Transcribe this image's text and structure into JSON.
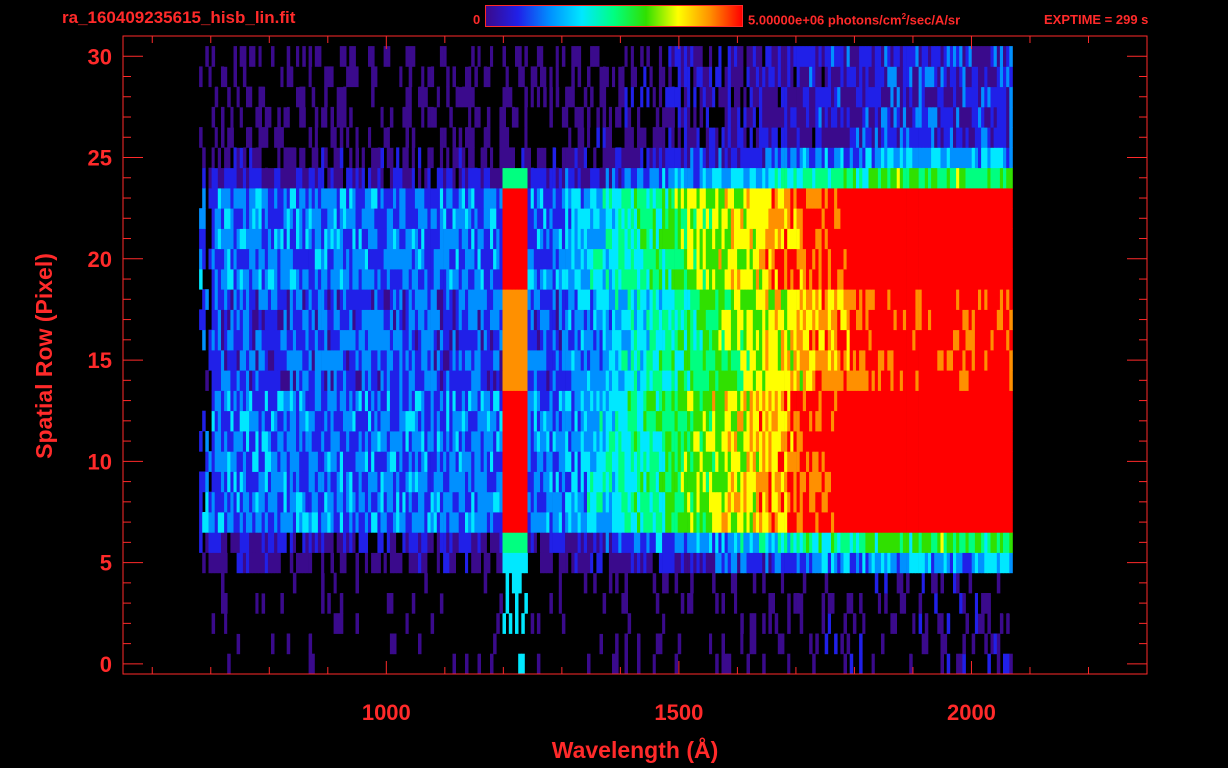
{
  "header": {
    "filename": "ra_160409235615_hisb_lin.fit",
    "colorbar_min": "0",
    "colorbar_max_value": "5.00000e+06",
    "colorbar_max_unit_pre": " photons/cm",
    "colorbar_max_unit_sup": "2",
    "colorbar_max_unit_post": "/sec/A/sr",
    "exptime": "EXPTIME = 299 s"
  },
  "colors": {
    "foreground": "#ff2a2a",
    "background": "#000000",
    "colormap": [
      "#000000",
      "#3a0a8c",
      "#2020e8",
      "#0090ff",
      "#00e8ff",
      "#00ff80",
      "#30e000",
      "#ffff00",
      "#ff9000",
      "#ff0000"
    ]
  },
  "chart_data": {
    "type": "heatmap",
    "title": "ra_160409235615_hisb_lin.fit",
    "xlabel": "Wavelength (Å)",
    "ylabel": "Spatial Row (Pixel)",
    "xlim": [
      550,
      2300
    ],
    "ylim": [
      -0.5,
      31
    ],
    "x_ticks": [
      1000,
      1500,
      2000
    ],
    "x_tick_labels": [
      "1000",
      "1500",
      "2000"
    ],
    "y_ticks": [
      0,
      5,
      10,
      15,
      20,
      25,
      30
    ],
    "y_tick_labels": [
      "0",
      "5",
      "10",
      "15",
      "20",
      "25",
      "30"
    ],
    "colorbar_range": [
      0,
      5000000
    ],
    "colorbar_unit": "photons/cm²/sec/A/sr",
    "rows": 31,
    "wavelength_range": [
      680,
      2070
    ],
    "emission_line_wavelength": 1216,
    "grid": false
  }
}
